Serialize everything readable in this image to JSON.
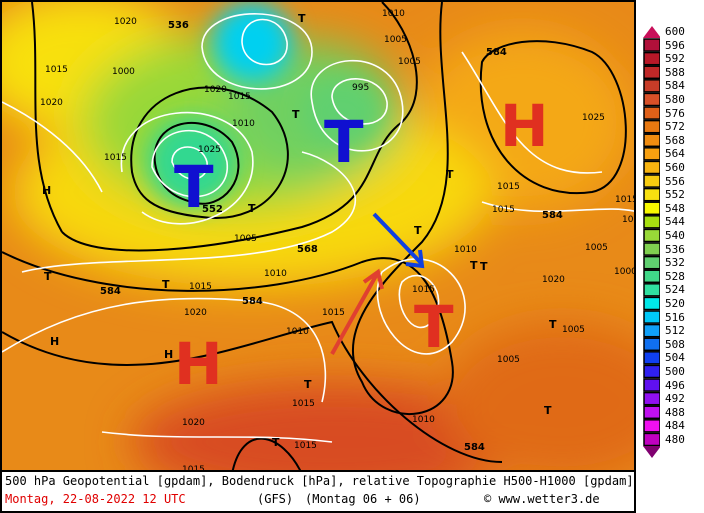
{
  "footer": {
    "title": "500 hPa Geopotential [gpdam], Bodendruck [hPa], relative Topographie H500-H1000 [gpdam]",
    "date": "Montag, 22-08-2022  12 UTC",
    "model": "(GFS)",
    "run": "(Montag 06 + 06)",
    "copyright": "© www.wetter3.de"
  },
  "legend": {
    "labels": [
      "600",
      "596",
      "592",
      "588",
      "584",
      "580",
      "576",
      "572",
      "568",
      "564",
      "560",
      "556",
      "552",
      "548",
      "544",
      "540",
      "536",
      "532",
      "528",
      "524",
      "520",
      "516",
      "512",
      "508",
      "504",
      "500",
      "496",
      "492",
      "488",
      "484",
      "480"
    ],
    "colors": [
      "#b0103a",
      "#b81828",
      "#c02828",
      "#c83c28",
      "#d85028",
      "#e06018",
      "#e87810",
      "#f08c10",
      "#f8a010",
      "#f8b410",
      "#f8cc10",
      "#f8e010",
      "#f8f800",
      "#a8e010",
      "#98d838",
      "#80d050",
      "#60d070",
      "#40d888",
      "#30e0a0",
      "#00e8e8",
      "#00c8f8",
      "#10a0f8",
      "#1070f0",
      "#1040f0",
      "#3020f0",
      "#6010f0",
      "#9010f0",
      "#c010f0",
      "#f010f0",
      "#c000c0"
    ],
    "top_arrow_color": "#c8105a",
    "bottom_arrow_color": "#800070"
  },
  "map": {
    "pressure_systems": {
      "low_iceland": "T",
      "low_norway": "T",
      "low_italy": "T",
      "high_atlantic": "H",
      "high_russia": "H"
    },
    "colors": {
      "low": "#1010d0",
      "high": "#e03020",
      "arrow_blue": "#1040e0",
      "arrow_red": "#e04030"
    },
    "geopotential_labels": [
      "536",
      "552",
      "568",
      "584",
      "584",
      "584",
      "584",
      "584"
    ],
    "isobar_labels": [
      "1015",
      "1000",
      "1020",
      "1010",
      "1015",
      "1005",
      "1025",
      "1015",
      "995",
      "1020",
      "1010",
      "1015",
      "1020",
      "1005",
      "1010",
      "1015",
      "1015",
      "1015",
      "1020",
      "1015",
      "1005",
      "1005",
      "1005",
      "1010",
      "1015",
      "1020",
      "1015",
      "1010",
      "1015",
      "1015",
      "1020",
      "1025",
      "1015",
      "1005",
      "1000",
      "1010"
    ],
    "small_markers": [
      "T",
      "T",
      "T",
      "T",
      "T",
      "T",
      "T",
      "T",
      "T",
      "T",
      "H",
      "H",
      "H",
      "T",
      "T",
      "T"
    ]
  }
}
